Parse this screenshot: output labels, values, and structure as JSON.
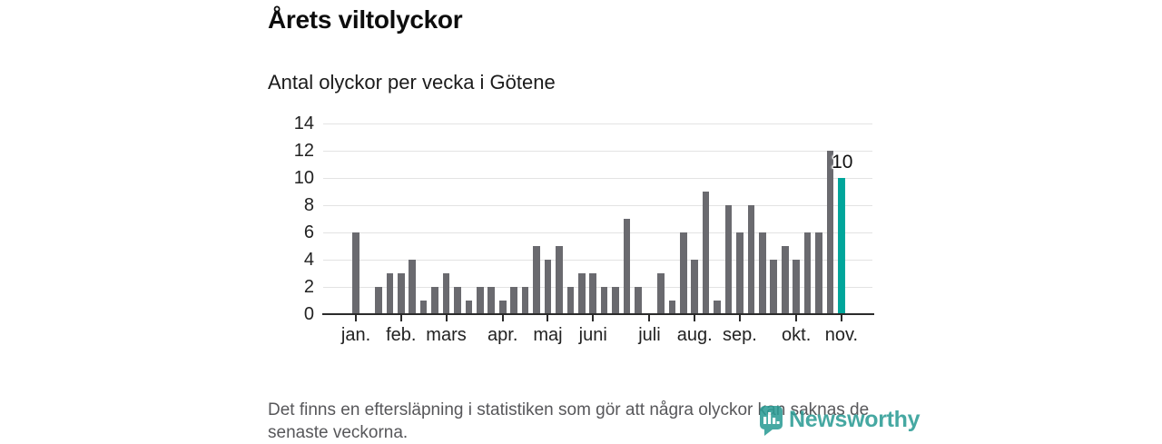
{
  "header": {
    "title": "Årets viltolyckor",
    "subtitle": "Antal olyckor per vecka i Götene"
  },
  "chart_data": {
    "type": "bar",
    "title": "Årets viltolyckor",
    "subtitle": "Antal olyckor per vecka i Götene",
    "x_unit": "vecka",
    "values": [
      6,
      0,
      2,
      3,
      3,
      4,
      1,
      2,
      3,
      2,
      1,
      2,
      2,
      1,
      2,
      2,
      5,
      4,
      5,
      2,
      3,
      3,
      2,
      2,
      7,
      2,
      0,
      3,
      1,
      6,
      4,
      9,
      1,
      8,
      6,
      8,
      6,
      4,
      5,
      4,
      6,
      6,
      12,
      10
    ],
    "yticks": [
      0,
      2,
      4,
      6,
      8,
      10,
      12,
      14
    ],
    "ylim": [
      0,
      14
    ],
    "grid": "horizontal",
    "months": [
      {
        "label": "jan.",
        "week": 1
      },
      {
        "label": "feb.",
        "week": 5
      },
      {
        "label": "mars",
        "week": 9
      },
      {
        "label": "apr.",
        "week": 14
      },
      {
        "label": "maj",
        "week": 18
      },
      {
        "label": "juni",
        "week": 22
      },
      {
        "label": "juli",
        "week": 27
      },
      {
        "label": "aug.",
        "week": 31
      },
      {
        "label": "sep.",
        "week": 35
      },
      {
        "label": "okt.",
        "week": 40
      },
      {
        "label": "nov.",
        "week": 44
      }
    ],
    "annotation": {
      "text": "10"
    },
    "colors": {
      "bar": "#6a6a6f",
      "highlight": "#00a69b"
    }
  },
  "footer": {
    "line1": "Det finns en eftersläpning i statistiken som gör att några olyckor kan saknas de",
    "line2": "senaste veckorna."
  },
  "logo": {
    "text": "Newsworthy"
  }
}
